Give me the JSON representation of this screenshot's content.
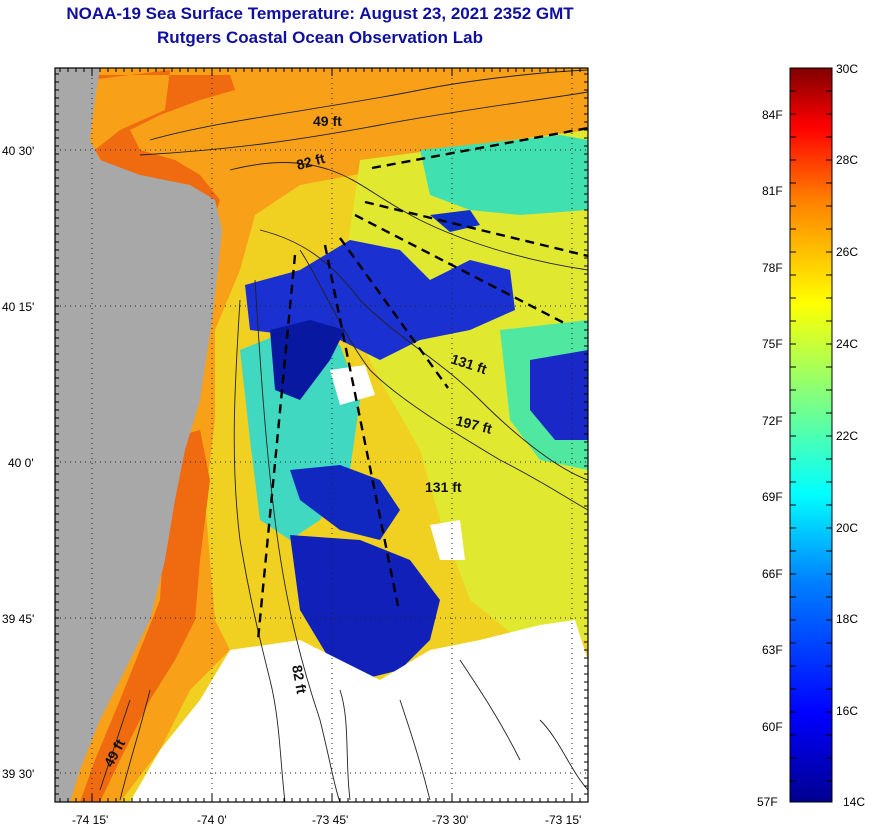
{
  "header": {
    "title": "NOAA-19 Sea Surface Temperature:  August 23, 2021 2352 GMT",
    "subtitle": "Rutgers Coastal Ocean Observation Lab"
  },
  "map": {
    "lat_ticks": [
      "40 30'",
      "40 15'",
      "40 0'",
      "39 45'",
      "39 30'"
    ],
    "lon_ticks": [
      "-74 15'",
      "-74 0'",
      "-73 45'",
      "-73 30'",
      "-73 15'"
    ],
    "contour_labels": [
      "49 ft",
      "82 ft",
      "131 ft",
      "197 ft",
      "131 ft",
      "82 ft",
      "49 ft"
    ],
    "colors": {
      "land": "#a8a8a8",
      "cloud": "#ffffff",
      "warm": "#f8a018",
      "hot": "#f06a10",
      "mid": "#f0e020",
      "cool": "#40e0b0",
      "cold": "#1020c0",
      "coldest": "#0818a0"
    }
  },
  "colorbar": {
    "celsius": [
      "30C",
      "28C",
      "26C",
      "24C",
      "22C",
      "20C",
      "18C",
      "16C",
      "14C"
    ],
    "fahrenheit": [
      "84F",
      "81F",
      "78F",
      "75F",
      "72F",
      "69F",
      "66F",
      "63F",
      "60F",
      "57F"
    ],
    "gradient": [
      "#00008f",
      "#0000ff",
      "#0080ff",
      "#00ffff",
      "#80ff80",
      "#ffff00",
      "#ff8000",
      "#ff0000",
      "#800000"
    ]
  }
}
